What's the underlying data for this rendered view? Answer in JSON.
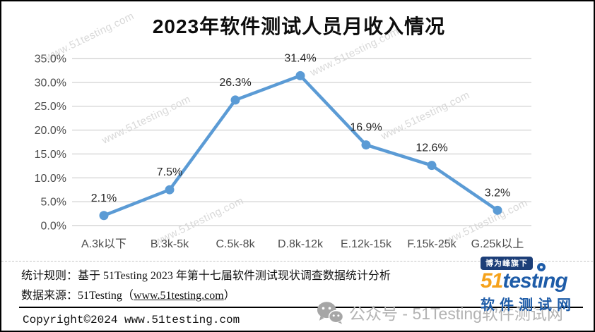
{
  "chart_data": {
    "type": "line",
    "title": "2023年软件测试人员月收入情况",
    "categories": [
      "A.3k以下",
      "B.3k-5k",
      "C.5k-8k",
      "D.8k-12k",
      "E.12k-15k",
      "F.15k-25k",
      "G.25k以上"
    ],
    "values": [
      2.1,
      7.5,
      26.3,
      31.4,
      16.9,
      12.6,
      3.2
    ],
    "data_labels": [
      "2.1%",
      "7.5%",
      "26.3%",
      "31.4%",
      "16.9%",
      "12.6%",
      "3.2%"
    ],
    "xlabel": "",
    "ylabel": "",
    "ylim": [
      0,
      35
    ],
    "ytick_step": 5,
    "ytick_labels": [
      "0.0%",
      "5.0%",
      "10.0%",
      "15.0%",
      "20.0%",
      "25.0%",
      "30.0%",
      "35.0%"
    ],
    "grid": true,
    "legend": "none",
    "line_color": "#5b9bd5",
    "grid_color": "#d6d6d6"
  },
  "watermark": {
    "text": "www.51testing.com"
  },
  "footer": {
    "rule_line": "统计规则：基于 51Testing 2023 年第十七届软件测试现状调查数据统计分析",
    "source_prefix": "数据来源：51Testing（",
    "source_link": "www.51testing.com",
    "source_suffix": "）",
    "copyright": "Copyright©2024 www.51testing.com"
  },
  "wechat_watermark": {
    "text": "公众号 - 51Testing软件测试网"
  },
  "logo": {
    "badge": "博为峰旗下",
    "brand_orange": "51",
    "brand_blue_1": "test",
    "brand_i": "ı",
    "brand_blue_2": "ng",
    "subtitle": "软件测试网",
    "colors": {
      "orange": "#f5a21b",
      "blue": "#1e5ca8",
      "badge_bg": "#1c3e78"
    }
  }
}
